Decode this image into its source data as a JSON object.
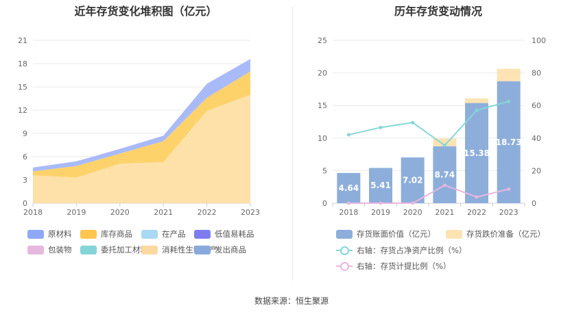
{
  "source": "数据来源：恒生聚源",
  "chart_data": [
    {
      "type": "area",
      "title": "近年存货变化堆积图（亿元）",
      "x": [
        "2018",
        "2019",
        "2020",
        "2021",
        "2022",
        "2023"
      ],
      "ylim": [
        0,
        21
      ],
      "y_ticks": [
        "0",
        "3",
        "6",
        "9",
        "12",
        "15",
        "18",
        "21"
      ],
      "stacked": true,
      "series": [
        {
          "name": "消耗性生物资产",
          "color": "#fde1a9",
          "values": [
            3.6,
            3.3,
            5.1,
            5.3,
            11.9,
            14.0
          ]
        },
        {
          "name": "库存商品",
          "color": "#fdd26a",
          "values": [
            0.5,
            1.5,
            1.3,
            2.7,
            1.7,
            3.0
          ]
        },
        {
          "name": "原材料",
          "color": "#a9baf8",
          "values": [
            0.5,
            0.6,
            0.6,
            0.7,
            1.8,
            1.6
          ]
        }
      ],
      "legend": [
        {
          "name": "原材料",
          "color": "#8fa8f7"
        },
        {
          "name": "库存商品",
          "color": "#fec64e"
        },
        {
          "name": "在产品",
          "color": "#a9d9f5"
        },
        {
          "name": "低值易耗品",
          "color": "#7d7df0"
        },
        {
          "name": "包装物",
          "color": "#e7b8dd"
        },
        {
          "name": "委托加工材料",
          "color": "#85d4d8"
        },
        {
          "name": "消耗性生物资产",
          "color": "#fdd9a1"
        },
        {
          "name": "发出商品",
          "color": "#8aa9dc"
        }
      ]
    },
    {
      "type": "bar",
      "title": "历年存货变动情况",
      "categories": [
        "2018",
        "2019",
        "2020",
        "2021",
        "2022",
        "2023"
      ],
      "ylim": [
        0,
        25
      ],
      "y_ticks": [
        "0",
        "5",
        "10",
        "15",
        "20",
        "25"
      ],
      "y2lim": [
        0,
        100
      ],
      "y2_ticks": [
        "0",
        "20",
        "40",
        "60",
        "80",
        "100"
      ],
      "series": [
        {
          "name": "存货账面价值（亿元）",
          "color": "#8daedb",
          "values": [
            4.64,
            5.41,
            7.02,
            8.74,
            15.38,
            18.73
          ],
          "labels": [
            "4.64",
            "5.41",
            "7.02",
            "8.74",
            "15.38",
            "18.73"
          ]
        },
        {
          "name": "存货跌价准备（亿元）",
          "color": "#fde3b4",
          "values": [
            0,
            0,
            0,
            1.2,
            0.7,
            1.9
          ]
        },
        {
          "name": "右轴：存货占净资产比例（%）",
          "color": "#86d6d6",
          "axis": "right",
          "values": [
            42,
            46.5,
            49.5,
            35.5,
            57,
            62.5
          ]
        },
        {
          "name": "右轴：存货计提比例（%）",
          "color": "#e9b6df",
          "axis": "right",
          "values": [
            0,
            0,
            0,
            11,
            3.8,
            8.6
          ]
        }
      ]
    }
  ]
}
